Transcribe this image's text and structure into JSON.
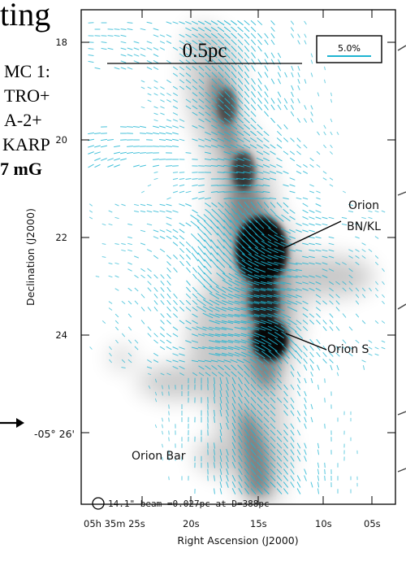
{
  "slide": {
    "title_fragment": "ting",
    "side_lines": [
      "MC 1:",
      "TRO+",
      "A-2+",
      "KARP"
    ],
    "side_bold_line": "7 mG"
  },
  "chart_data": {
    "type": "polarization-vector map",
    "xlabel": "Right Ascension (J2000)",
    "ylabel": "Declination (J2000)",
    "x_ticks": [
      "05h 35m 25s",
      "20s",
      "15s",
      "10s",
      "05s"
    ],
    "y_ticks": [
      "18",
      "20",
      "22",
      "24",
      "-05° 26'"
    ],
    "scale_bar": "0.5pc",
    "vector_scale": "5.0%",
    "beam_note": "14.1\" beam =0.027pc at D=388pc",
    "annotations": [
      "Orion BN/KL",
      "Orion S",
      "Orion Bar"
    ],
    "colors": {
      "vectors": "#1eb4d2",
      "emission": "#000000",
      "frame": "#000000"
    }
  }
}
